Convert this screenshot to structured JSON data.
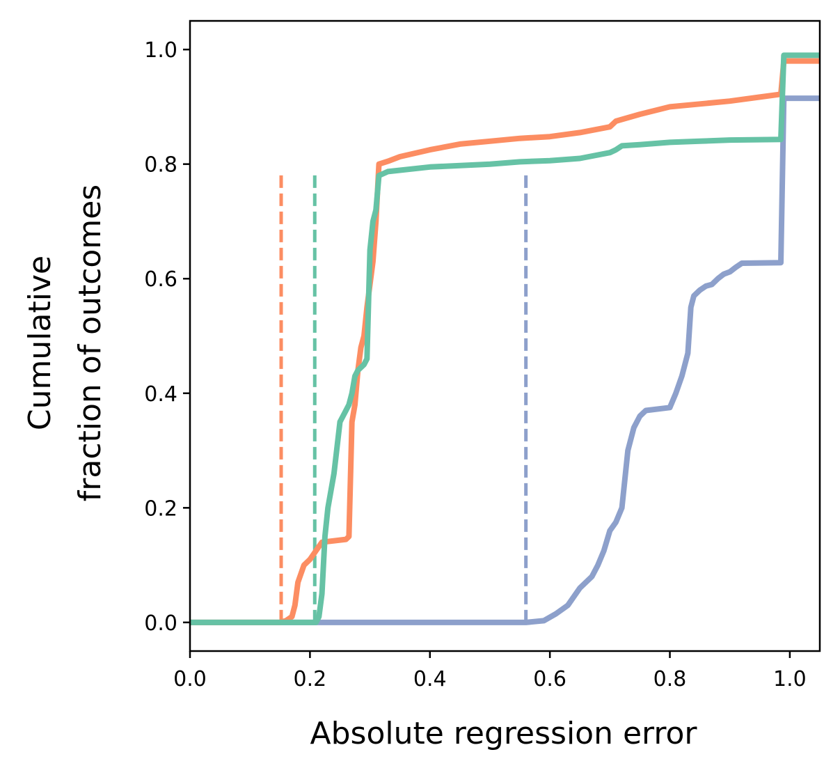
{
  "chart_data": {
    "type": "line",
    "title": "",
    "xlabel": "Absolute regression error",
    "ylabel_lines": [
      "Cumulative",
      "fraction of outcomes"
    ],
    "xlim": [
      0.0,
      1.05
    ],
    "ylim": [
      -0.05,
      1.05
    ],
    "xticks": [
      0.0,
      0.2,
      0.4,
      0.6,
      0.8,
      1.0
    ],
    "yticks": [
      0.0,
      0.2,
      0.4,
      0.6,
      0.8,
      1.0
    ],
    "xtick_labels": [
      "0.0",
      "0.2",
      "0.4",
      "0.6",
      "0.8",
      "1.0"
    ],
    "ytick_labels": [
      "0.0",
      "0.2",
      "0.4",
      "0.6",
      "0.8",
      "1.0"
    ],
    "grid": false,
    "legend": "none",
    "series": [
      {
        "color": "#fc8d62",
        "points": [
          [
            0.0,
            0.0
          ],
          [
            0.15,
            0.0
          ],
          [
            0.16,
            0.003
          ],
          [
            0.17,
            0.01
          ],
          [
            0.175,
            0.03
          ],
          [
            0.18,
            0.07
          ],
          [
            0.19,
            0.1
          ],
          [
            0.2,
            0.11
          ],
          [
            0.21,
            0.125
          ],
          [
            0.22,
            0.14
          ],
          [
            0.26,
            0.145
          ],
          [
            0.265,
            0.15
          ],
          [
            0.27,
            0.35
          ],
          [
            0.275,
            0.38
          ],
          [
            0.28,
            0.44
          ],
          [
            0.285,
            0.48
          ],
          [
            0.29,
            0.5
          ],
          [
            0.295,
            0.55
          ],
          [
            0.3,
            0.59
          ],
          [
            0.305,
            0.63
          ],
          [
            0.31,
            0.7
          ],
          [
            0.315,
            0.8
          ],
          [
            0.33,
            0.805
          ],
          [
            0.35,
            0.813
          ],
          [
            0.4,
            0.825
          ],
          [
            0.45,
            0.835
          ],
          [
            0.5,
            0.84
          ],
          [
            0.55,
            0.845
          ],
          [
            0.6,
            0.848
          ],
          [
            0.65,
            0.855
          ],
          [
            0.7,
            0.865
          ],
          [
            0.71,
            0.875
          ],
          [
            0.72,
            0.878
          ],
          [
            0.75,
            0.887
          ],
          [
            0.8,
            0.9
          ],
          [
            0.85,
            0.905
          ],
          [
            0.9,
            0.91
          ],
          [
            0.95,
            0.917
          ],
          [
            0.985,
            0.922
          ],
          [
            0.99,
            0.98
          ],
          [
            1.05,
            0.98
          ]
        ]
      },
      {
        "color": "#66c2a5",
        "points": [
          [
            0.0,
            0.0
          ],
          [
            0.21,
            0.0
          ],
          [
            0.215,
            0.01
          ],
          [
            0.22,
            0.05
          ],
          [
            0.225,
            0.15
          ],
          [
            0.23,
            0.2
          ],
          [
            0.24,
            0.26
          ],
          [
            0.25,
            0.35
          ],
          [
            0.255,
            0.36
          ],
          [
            0.26,
            0.37
          ],
          [
            0.265,
            0.38
          ],
          [
            0.27,
            0.4
          ],
          [
            0.275,
            0.43
          ],
          [
            0.28,
            0.44
          ],
          [
            0.29,
            0.45
          ],
          [
            0.295,
            0.46
          ],
          [
            0.3,
            0.65
          ],
          [
            0.305,
            0.7
          ],
          [
            0.31,
            0.72
          ],
          [
            0.315,
            0.78
          ],
          [
            0.33,
            0.787
          ],
          [
            0.4,
            0.795
          ],
          [
            0.5,
            0.8
          ],
          [
            0.55,
            0.804
          ],
          [
            0.6,
            0.806
          ],
          [
            0.65,
            0.81
          ],
          [
            0.7,
            0.82
          ],
          [
            0.71,
            0.825
          ],
          [
            0.72,
            0.832
          ],
          [
            0.75,
            0.834
          ],
          [
            0.8,
            0.838
          ],
          [
            0.85,
            0.84
          ],
          [
            0.9,
            0.842
          ],
          [
            0.985,
            0.843
          ],
          [
            0.99,
            0.99
          ],
          [
            1.05,
            0.99
          ]
        ]
      },
      {
        "color": "#8da0cb",
        "points": [
          [
            0.0,
            0.0
          ],
          [
            0.56,
            0.0
          ],
          [
            0.59,
            0.003
          ],
          [
            0.61,
            0.015
          ],
          [
            0.63,
            0.03
          ],
          [
            0.65,
            0.06
          ],
          [
            0.67,
            0.08
          ],
          [
            0.68,
            0.1
          ],
          [
            0.69,
            0.125
          ],
          [
            0.7,
            0.16
          ],
          [
            0.71,
            0.175
          ],
          [
            0.72,
            0.2
          ],
          [
            0.725,
            0.25
          ],
          [
            0.73,
            0.3
          ],
          [
            0.74,
            0.34
          ],
          [
            0.75,
            0.36
          ],
          [
            0.76,
            0.37
          ],
          [
            0.8,
            0.375
          ],
          [
            0.81,
            0.4
          ],
          [
            0.82,
            0.43
          ],
          [
            0.83,
            0.47
          ],
          [
            0.835,
            0.55
          ],
          [
            0.84,
            0.57
          ],
          [
            0.85,
            0.58
          ],
          [
            0.86,
            0.587
          ],
          [
            0.87,
            0.59
          ],
          [
            0.88,
            0.6
          ],
          [
            0.89,
            0.608
          ],
          [
            0.9,
            0.612
          ],
          [
            0.91,
            0.62
          ],
          [
            0.92,
            0.627
          ],
          [
            0.985,
            0.628
          ],
          [
            0.99,
            0.915
          ],
          [
            1.05,
            0.915
          ]
        ]
      }
    ],
    "vlines": [
      {
        "x": 0.152,
        "ymax": 0.79,
        "color": "#fc8d62",
        "style": "dashed"
      },
      {
        "x": 0.208,
        "ymax": 0.79,
        "color": "#66c2a5",
        "style": "dashed"
      },
      {
        "x": 0.56,
        "ymax": 0.79,
        "color": "#8da0cb",
        "style": "dashed"
      }
    ]
  }
}
